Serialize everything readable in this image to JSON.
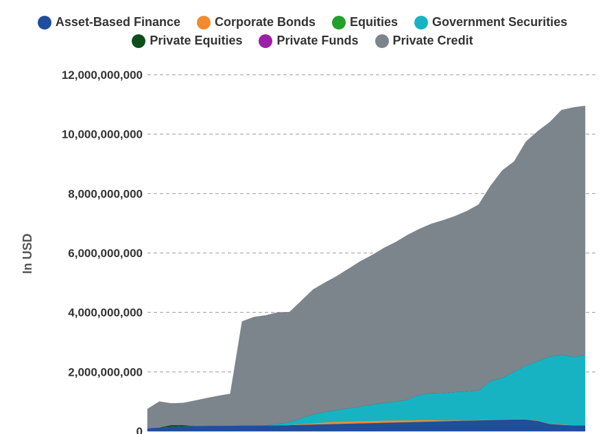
{
  "chart_data": {
    "type": "area",
    "stacked": true,
    "title": "",
    "xlabel": "",
    "ylabel": "In USD",
    "ylim": [
      0,
      12000000000
    ],
    "yticks": [
      0,
      2000000000,
      4000000000,
      6000000000,
      8000000000,
      10000000000,
      12000000000
    ],
    "ytick_labels": [
      "0",
      "2,000,000,000",
      "4,000,000,000",
      "6,000,000,000",
      "8,000,000,000",
      "10,000,000,000",
      "12,000,000,000"
    ],
    "grid": true,
    "legend_position": "top-center",
    "x": [
      1,
      2,
      3,
      4,
      5,
      6,
      7,
      8,
      9,
      10,
      11,
      12,
      13,
      14,
      15,
      16,
      17,
      18,
      19,
      20,
      21,
      22,
      23,
      24,
      25,
      26,
      27,
      28,
      29,
      30,
      31,
      32,
      33,
      34,
      35,
      36,
      37,
      38
    ],
    "series": [
      {
        "name": "Asset-Based Finance",
        "color": "#1f4e9c",
        "values": [
          100000000,
          130000000,
          150000000,
          170000000,
          180000000,
          185000000,
          190000000,
          190000000,
          195000000,
          195000000,
          200000000,
          200000000,
          210000000,
          220000000,
          230000000,
          240000000,
          250000000,
          260000000,
          270000000,
          280000000,
          290000000,
          300000000,
          310000000,
          320000000,
          330000000,
          340000000,
          350000000,
          360000000,
          370000000,
          380000000,
          390000000,
          400000000,
          400000000,
          350000000,
          250000000,
          220000000,
          200000000,
          200000000
        ]
      },
      {
        "name": "Corporate Bonds",
        "color": "#f28a30",
        "values": [
          0,
          0,
          0,
          0,
          0,
          0,
          0,
          0,
          0,
          0,
          0,
          0,
          0,
          20000000,
          40000000,
          60000000,
          70000000,
          70000000,
          70000000,
          70000000,
          70000000,
          70000000,
          60000000,
          60000000,
          50000000,
          30000000,
          20000000,
          10000000,
          10000000,
          10000000,
          10000000,
          10000000,
          10000000,
          10000000,
          10000000,
          10000000,
          10000000,
          10000000
        ]
      },
      {
        "name": "Equities",
        "color": "#22a02a",
        "values": [
          0,
          0,
          0,
          0,
          0,
          0,
          0,
          0,
          0,
          0,
          0,
          0,
          0,
          0,
          0,
          0,
          0,
          0,
          0,
          0,
          0,
          0,
          0,
          0,
          0,
          0,
          0,
          0,
          0,
          0,
          0,
          0,
          0,
          0,
          0,
          0,
          0,
          0
        ]
      },
      {
        "name": "Government Securities",
        "color": "#17b3c2",
        "values": [
          0,
          0,
          0,
          0,
          0,
          0,
          0,
          0,
          0,
          0,
          0,
          50000000,
          100000000,
          200000000,
          300000000,
          350000000,
          400000000,
          450000000,
          500000000,
          550000000,
          600000000,
          630000000,
          700000000,
          850000000,
          900000000,
          920000000,
          950000000,
          980000000,
          1000000000,
          1300000000,
          1400000000,
          1600000000,
          1800000000,
          2000000000,
          2250000000,
          2350000000,
          2300000000,
          2350000000
        ]
      },
      {
        "name": "Private Equities",
        "color": "#0f4d1b",
        "values": [
          0,
          0,
          60000000,
          40000000,
          0,
          0,
          0,
          0,
          0,
          0,
          0,
          0,
          0,
          0,
          0,
          0,
          0,
          0,
          0,
          0,
          0,
          0,
          0,
          0,
          0,
          0,
          0,
          0,
          0,
          0,
          0,
          0,
          0,
          0,
          0,
          0,
          0,
          0
        ]
      },
      {
        "name": "Private Funds",
        "color": "#9b1fa8",
        "values": [
          0,
          0,
          0,
          0,
          0,
          0,
          0,
          0,
          0,
          0,
          0,
          0,
          0,
          0,
          0,
          0,
          0,
          0,
          0,
          0,
          0,
          0,
          0,
          0,
          0,
          0,
          0,
          0,
          0,
          0,
          0,
          0,
          0,
          0,
          0,
          0,
          0,
          0
        ]
      },
      {
        "name": "Private Credit",
        "color": "#7d858c",
        "values": [
          650000000,
          870000000,
          730000000,
          740000000,
          850000000,
          930000000,
          1000000000,
          1070000000,
          3500000000,
          3650000000,
          3700000000,
          3750000000,
          3700000000,
          3950000000,
          4200000000,
          4350000000,
          4500000000,
          4690000000,
          4880000000,
          5030000000,
          5210000000,
          5370000000,
          5540000000,
          5580000000,
          5700000000,
          5810000000,
          5920000000,
          6060000000,
          6250000000,
          6570000000,
          6980000000,
          7070000000,
          7540000000,
          7740000000,
          7890000000,
          8230000000,
          8390000000,
          8390000000
        ]
      }
    ]
  },
  "legend": {
    "rows": [
      [
        {
          "label": "Asset-Based Finance",
          "color": "#1f4e9c"
        },
        {
          "label": "Corporate Bonds",
          "color": "#f28a30"
        },
        {
          "label": "Equities",
          "color": "#22a02a"
        },
        {
          "label": "Government Securities",
          "color": "#17b3c2"
        }
      ],
      [
        {
          "label": "Private Equities",
          "color": "#0f4d1b"
        },
        {
          "label": "Private Funds",
          "color": "#9b1fa8"
        },
        {
          "label": "Private Credit",
          "color": "#7d858c"
        }
      ]
    ]
  }
}
